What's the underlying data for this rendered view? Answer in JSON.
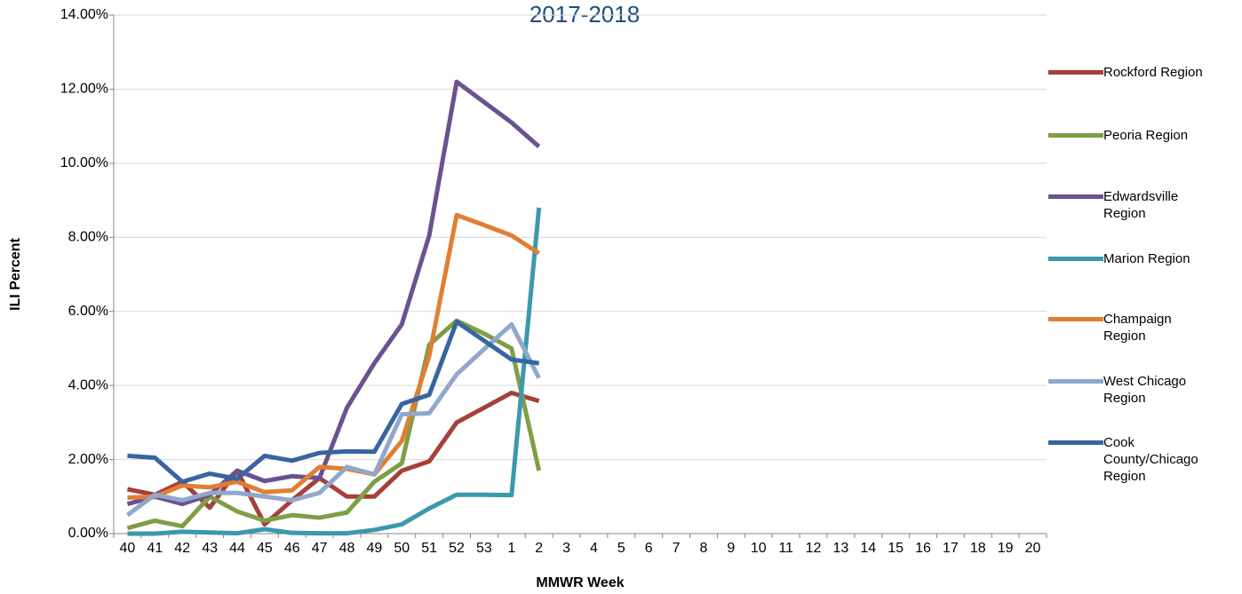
{
  "chart_data": {
    "type": "line",
    "title": "2017-2018",
    "x_label": "MMWR Week",
    "y_label": "ILI Percent",
    "categories": [
      "40",
      "41",
      "42",
      "43",
      "44",
      "45",
      "46",
      "47",
      "48",
      "49",
      "50",
      "51",
      "52",
      "53",
      "1",
      "2",
      "3",
      "4",
      "5",
      "6",
      "7",
      "8",
      "9",
      "10",
      "11",
      "12",
      "13",
      "14",
      "15",
      "16",
      "17",
      "18",
      "19",
      "20"
    ],
    "ylim": [
      0,
      14
    ],
    "yticks": [
      {
        "value": 0,
        "label": "0.00%"
      },
      {
        "value": 2,
        "label": "2.00%"
      },
      {
        "value": 4,
        "label": "4.00%"
      },
      {
        "value": 6,
        "label": "6.00%"
      },
      {
        "value": 8,
        "label": "8.00%"
      },
      {
        "value": 10,
        "label": "10.00%"
      },
      {
        "value": 12,
        "label": "12.00%"
      },
      {
        "value": 14,
        "label": "14.00%"
      }
    ],
    "grid": true,
    "legend": "right",
    "series": [
      {
        "name": "Rockford Region",
        "color": "#a5403b",
        "values": [
          1.2,
          1.05,
          1.4,
          0.7,
          1.7,
          0.25,
          0.9,
          1.5,
          1.0,
          1.0,
          1.7,
          1.95,
          3.0,
          3.4,
          3.8,
          3.58,
          null,
          null,
          null,
          null,
          null,
          null,
          null,
          null,
          null,
          null,
          null,
          null,
          null,
          null,
          null,
          null,
          null,
          null
        ]
      },
      {
        "name": "Peoria Region",
        "color": "#7f9e45",
        "values": [
          0.15,
          0.35,
          0.2,
          1.0,
          0.6,
          0.35,
          0.5,
          0.43,
          0.57,
          1.4,
          1.9,
          5.1,
          5.75,
          5.4,
          5.0,
          1.7,
          null,
          null,
          null,
          null,
          null,
          null,
          null,
          null,
          null,
          null,
          null,
          null,
          null,
          null,
          null,
          null,
          null,
          null
        ]
      },
      {
        "name": "Edwardsville Region",
        "color": "#6c5190",
        "values": [
          0.8,
          1.0,
          0.8,
          1.05,
          1.7,
          1.42,
          1.55,
          1.5,
          3.4,
          4.6,
          5.65,
          8.05,
          12.2,
          11.65,
          11.1,
          10.45,
          null,
          null,
          null,
          null,
          null,
          null,
          null,
          null,
          null,
          null,
          null,
          null,
          null,
          null,
          null,
          null,
          null,
          null
        ]
      },
      {
        "name": "Marion Region",
        "color": "#3b98ad",
        "values": [
          0,
          0,
          0.05,
          0.03,
          0.01,
          0.12,
          0.02,
          0.01,
          0.01,
          0.1,
          0.25,
          0.68,
          1.05,
          1.05,
          1.04,
          8.8,
          null,
          null,
          null,
          null,
          null,
          null,
          null,
          null,
          null,
          null,
          null,
          null,
          null,
          null,
          null,
          null,
          null,
          null
        ]
      },
      {
        "name": "Champaign Region",
        "color": "#e07f33",
        "values": [
          0.97,
          1.0,
          1.3,
          1.25,
          1.4,
          1.12,
          1.17,
          1.8,
          1.75,
          1.6,
          2.5,
          4.8,
          8.6,
          8.33,
          8.05,
          7.57,
          null,
          null,
          null,
          null,
          null,
          null,
          null,
          null,
          null,
          null,
          null,
          null,
          null,
          null,
          null,
          null,
          null,
          null
        ]
      },
      {
        "name": "West Chicago Region",
        "color": "#8fa8cc",
        "values": [
          0.5,
          1.05,
          0.9,
          1.1,
          1.1,
          1.0,
          0.9,
          1.1,
          1.8,
          1.6,
          3.22,
          3.25,
          4.3,
          4.98,
          5.65,
          4.2,
          null,
          null,
          null,
          null,
          null,
          null,
          null,
          null,
          null,
          null,
          null,
          null,
          null,
          null,
          null,
          null,
          null,
          null
        ]
      },
      {
        "name": "Cook County/Chicago Region",
        "color": "#3865a0",
        "values": [
          2.1,
          2.05,
          1.4,
          1.62,
          1.48,
          2.1,
          1.97,
          2.18,
          2.22,
          2.21,
          3.5,
          3.75,
          5.72,
          5.21,
          4.7,
          4.6,
          null,
          null,
          null,
          null,
          null,
          null,
          null,
          null,
          null,
          null,
          null,
          null,
          null,
          null,
          null,
          null,
          null,
          null
        ]
      }
    ]
  }
}
